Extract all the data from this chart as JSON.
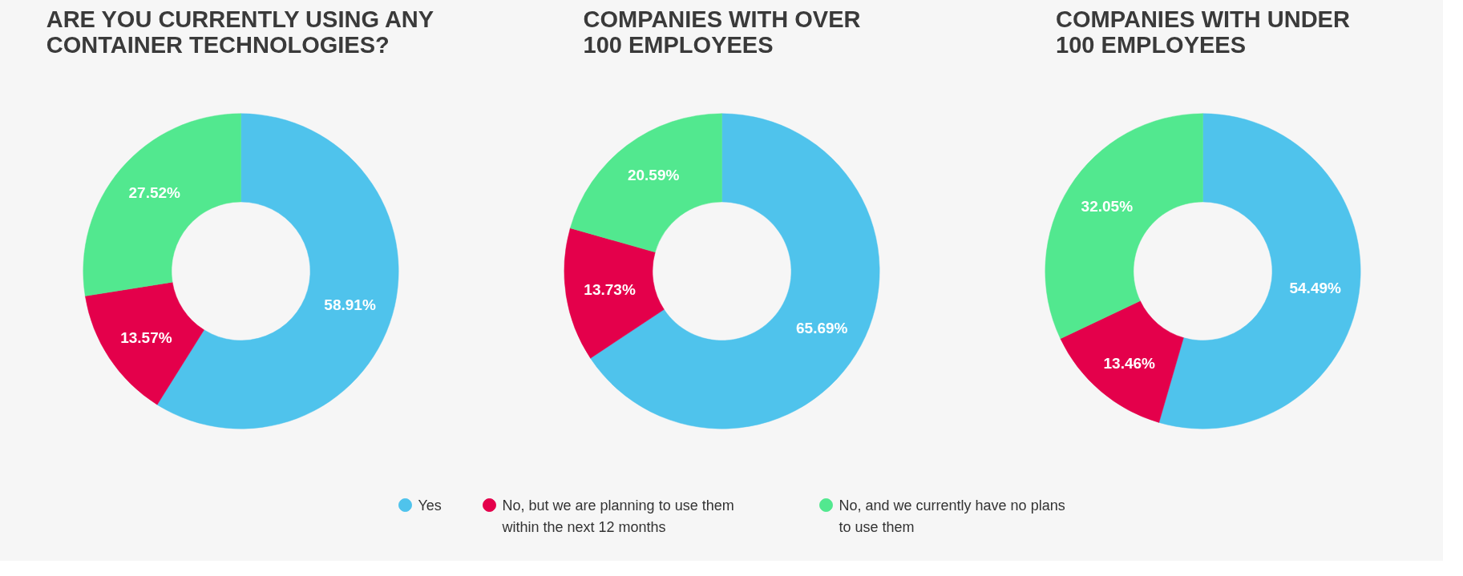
{
  "chart_data": [
    {
      "type": "donut",
      "title": "ARE YOU CURRENTLY USING ANY\nCONTAINER TECHNOLOGIES?",
      "categories": [
        "Yes",
        "No, but we are planning to use them within the next 12 months",
        "No, and we currently have no plans to use them"
      ],
      "values": [
        58.91,
        13.57,
        27.52
      ],
      "colors": [
        "#4fc3ec",
        "#e4004b",
        "#52e88f"
      ],
      "value_labels": [
        "58.91%",
        "13.57%",
        "27.52%"
      ],
      "legend": "bottom"
    },
    {
      "type": "donut",
      "title": "COMPANIES WITH OVER\n100 EMPLOYEES",
      "categories": [
        null,
        null,
        null
      ],
      "values": [
        65.69,
        13.73,
        20.59
      ],
      "colors": [
        "#4fc3ec",
        "#e4004b",
        "#52e88f"
      ],
      "value_labels": [
        "65.69%",
        "13.73%",
        "20.59%"
      ]
    },
    {
      "type": "donut",
      "title": "COMPANIES WITH UNDER\n100 EMPLOYEES",
      "categories": [
        null,
        null,
        null
      ],
      "values": [
        54.49,
        13.46,
        32.05
      ],
      "colors": [
        "#4fc3ec",
        "#e4004b",
        "#52e88f"
      ],
      "value_labels": [
        "54.49%",
        "13.46%",
        "32.05%"
      ]
    }
  ]
}
